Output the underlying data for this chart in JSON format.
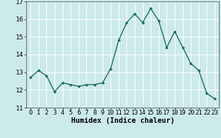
{
  "x": [
    0,
    1,
    2,
    3,
    4,
    5,
    6,
    7,
    8,
    9,
    10,
    11,
    12,
    13,
    14,
    15,
    16,
    17,
    18,
    19,
    20,
    21,
    22,
    23
  ],
  "y": [
    12.7,
    13.1,
    12.8,
    11.9,
    12.4,
    12.3,
    12.2,
    12.3,
    12.3,
    12.4,
    13.2,
    14.8,
    15.8,
    16.3,
    15.8,
    16.6,
    15.9,
    14.4,
    15.3,
    14.4,
    13.5,
    13.1,
    11.8,
    11.5
  ],
  "line_color": "#1a6b5e",
  "marker": "D",
  "marker_size": 2.0,
  "bg_color": "#cceaea",
  "grid_color": "#ffffff",
  "spine_color": "#555555",
  "xlabel": "Humidex (Indice chaleur)",
  "ylim": [
    11,
    17
  ],
  "xlim": [
    -0.5,
    23.5
  ],
  "yticks": [
    11,
    12,
    13,
    14,
    15,
    16,
    17
  ],
  "xticks": [
    0,
    1,
    2,
    3,
    4,
    5,
    6,
    7,
    8,
    9,
    10,
    11,
    12,
    13,
    14,
    15,
    16,
    17,
    18,
    19,
    20,
    21,
    22,
    23
  ],
  "xlabel_fontsize": 7.5,
  "tick_fontsize": 6.5,
  "linewidth": 1.0
}
